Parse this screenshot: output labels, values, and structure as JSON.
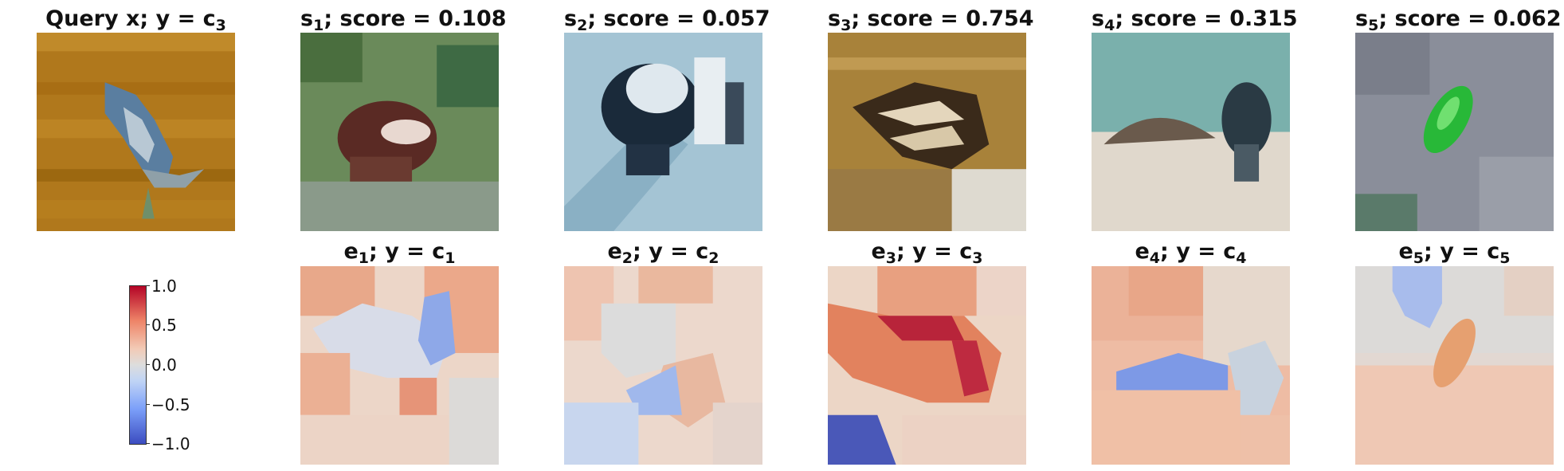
{
  "query": {
    "label_main": "Query x; y = c",
    "label_sub": "3"
  },
  "samples": [
    {
      "id": "1",
      "score": "0.108"
    },
    {
      "id": "2",
      "score": "0.057"
    },
    {
      "id": "3",
      "score": "0.754"
    },
    {
      "id": "4",
      "score": "0.315"
    },
    {
      "id": "5",
      "score": "0.062"
    }
  ],
  "explanations": [
    {
      "id": "1",
      "cls": "1"
    },
    {
      "id": "2",
      "cls": "2"
    },
    {
      "id": "3",
      "cls": "3"
    },
    {
      "id": "4",
      "cls": "4"
    },
    {
      "id": "5",
      "cls": "5"
    }
  ],
  "colorbar": {
    "ticks": [
      "1.0",
      "0.5",
      "0.0",
      "−0.5",
      "−1.0"
    ]
  }
}
